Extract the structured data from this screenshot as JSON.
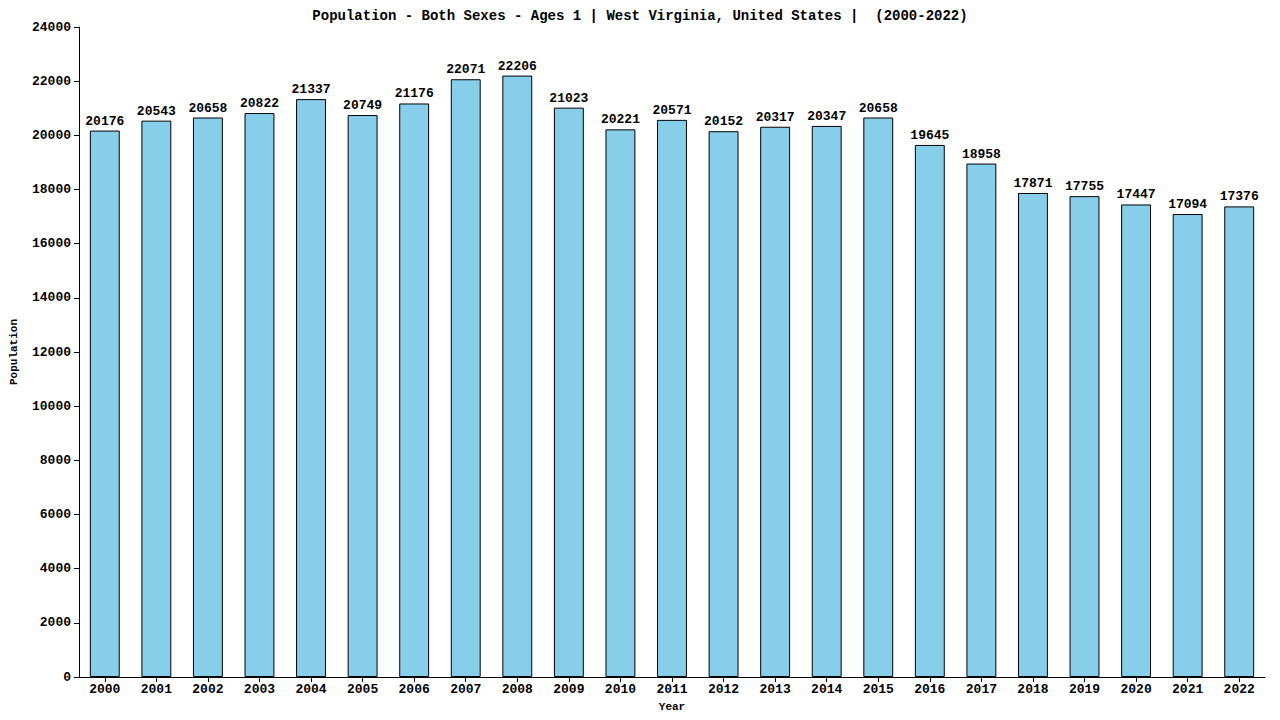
{
  "chart_data": {
    "type": "bar",
    "title": "Population - Both Sexes - Ages 1 | West Virginia, United States |  (2000-2022)",
    "x_label": "Year",
    "y_label": "Population",
    "categories": [
      "2000",
      "2001",
      "2002",
      "2003",
      "2004",
      "2005",
      "2006",
      "2007",
      "2008",
      "2009",
      "2010",
      "2011",
      "2012",
      "2013",
      "2014",
      "2015",
      "2016",
      "2017",
      "2018",
      "2019",
      "2020",
      "2021",
      "2022"
    ],
    "values": [
      20176,
      20543,
      20658,
      20822,
      21337,
      20749,
      21176,
      22071,
      22206,
      21023,
      20221,
      20571,
      20152,
      20317,
      20347,
      20658,
      19645,
      18958,
      17871,
      17755,
      17447,
      17094,
      17376
    ],
    "color": "#87ceeb",
    "ylim": [
      0,
      24000
    ],
    "yticks": [
      0,
      2000,
      4000,
      6000,
      8000,
      10000,
      12000,
      14000,
      16000,
      18000,
      20000,
      22000,
      24000
    ],
    "grid": false,
    "data_labels": true
  }
}
